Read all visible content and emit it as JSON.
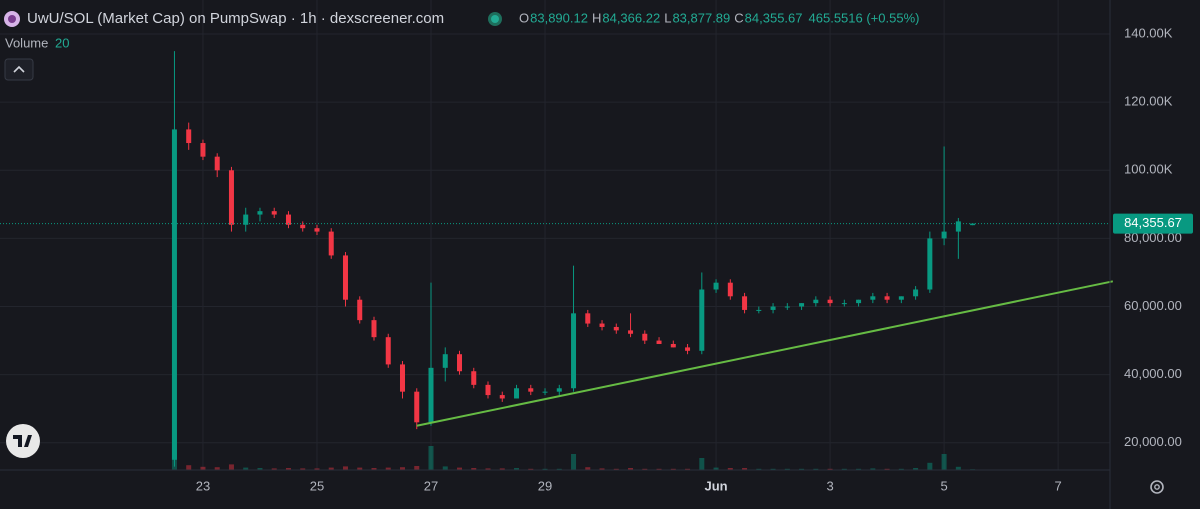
{
  "chart_data": {
    "type": "candlestick",
    "title": "UwU/SOL (Market Cap) on PumpSwap · 1h · dexscreener.com",
    "ohlc_legend": [
      {
        "key": "O",
        "value": "83,890.12"
      },
      {
        "key": "H",
        "value": "84,366.22"
      },
      {
        "key": "L",
        "value": "83,877.89"
      },
      {
        "key": "C",
        "value": "84,355.67"
      }
    ],
    "change": "465.5516 (+0.55%)",
    "volume_label": "Volume",
    "volume_length": 20,
    "up_color": "#089981",
    "down_color": "#f23645",
    "x": [
      22.5,
      22.75,
      23,
      23.25,
      23.5,
      23.75,
      24,
      24.25,
      24.5,
      24.75,
      25,
      25.25,
      25.5,
      25.75,
      26,
      26.25,
      26.5,
      26.75,
      27,
      27.25,
      27.5,
      27.75,
      28,
      28.25,
      28.5,
      28.75,
      29,
      29.25,
      29.5,
      29.75,
      30,
      30.25,
      30.5,
      30.75,
      31,
      31.25,
      31.5,
      31.75,
      32,
      32.25,
      32.5,
      32.75,
      33,
      33.25,
      33.5,
      33.75,
      34,
      34.25,
      34.5,
      34.75,
      35,
      35.25,
      35.5,
      35.75,
      36,
      36.25,
      36.5
    ],
    "open": [
      15000,
      112000,
      108000,
      104000,
      100000,
      84000,
      87000,
      88000,
      87000,
      84000,
      83000,
      82000,
      75000,
      62000,
      56000,
      51000,
      43000,
      35000,
      26000,
      42000,
      46000,
      41000,
      37000,
      34000,
      33000,
      36000,
      35000,
      35000,
      36000,
      58000,
      55000,
      54000,
      53000,
      52000,
      50000,
      49000,
      48000,
      47000,
      65000,
      67000,
      63000,
      59000,
      59000,
      60000,
      60000,
      61000,
      62000,
      61000,
      61000,
      62000,
      63000,
      62000,
      63000,
      65000,
      80000,
      82000,
      83890.12
    ],
    "high": [
      135000,
      114000,
      109000,
      105000,
      101000,
      89000,
      89000,
      89000,
      88000,
      85000,
      84000,
      83000,
      76000,
      63000,
      57000,
      52000,
      44000,
      36000,
      67000,
      48000,
      47000,
      42000,
      38000,
      35000,
      37000,
      37000,
      36000,
      37000,
      72000,
      59000,
      56000,
      55000,
      58000,
      53000,
      51000,
      50000,
      49000,
      70000,
      68000,
      68000,
      64000,
      60000,
      61000,
      61000,
      61000,
      63000,
      63000,
      62000,
      62000,
      64000,
      64000,
      63000,
      66000,
      82000,
      107000,
      86000,
      84366.22
    ],
    "low": [
      13000,
      106000,
      103000,
      98000,
      82000,
      82000,
      85000,
      86000,
      83000,
      82000,
      81000,
      74000,
      60000,
      55000,
      50000,
      42000,
      33000,
      24000,
      25000,
      38000,
      40000,
      36000,
      33000,
      32000,
      33000,
      34000,
      34000,
      34000,
      35000,
      54000,
      53000,
      52000,
      51000,
      49000,
      49000,
      48000,
      46000,
      46000,
      64000,
      62000,
      58000,
      58000,
      58000,
      59000,
      59000,
      60000,
      60000,
      60000,
      60000,
      61000,
      61000,
      61000,
      62000,
      64000,
      78000,
      74000,
      83877.89
    ],
    "close": [
      112000,
      108000,
      104000,
      100000,
      84000,
      87000,
      88000,
      87000,
      84000,
      83000,
      82000,
      75000,
      62000,
      56000,
      51000,
      43000,
      35000,
      26000,
      42000,
      46000,
      41000,
      37000,
      34000,
      33000,
      36000,
      35000,
      35000,
      36000,
      58000,
      55000,
      54000,
      53000,
      52000,
      50000,
      49000,
      48000,
      47000,
      65000,
      67000,
      63000,
      59000,
      59000,
      60000,
      60000,
      61000,
      62000,
      61000,
      61000,
      62000,
      63000,
      62000,
      63000,
      65000,
      80000,
      82000,
      85000,
      84355.67
    ],
    "volume": [
      100,
      12,
      8,
      7,
      14,
      6,
      5,
      4,
      5,
      4,
      4,
      6,
      9,
      6,
      5,
      6,
      7,
      10,
      60,
      9,
      6,
      5,
      4,
      4,
      5,
      3,
      3,
      3,
      40,
      7,
      4,
      3,
      5,
      3,
      3,
      3,
      3,
      30,
      6,
      5,
      5,
      3,
      3,
      3,
      3,
      3,
      3,
      3,
      3,
      4,
      3,
      3,
      5,
      18,
      40,
      8,
      2
    ],
    "trendline": {
      "x": [
        26.75,
        38.96
      ],
      "y": [
        25000,
        67400
      ],
      "color": "#66bb44"
    },
    "last_price": {
      "value": 84355.67,
      "label": "84,355.67"
    },
    "xlim": [
      19.44,
      38.91
    ],
    "ylim": [
      12000,
      150000
    ],
    "xticks": [
      23,
      25,
      27,
      29,
      {
        "value": 32,
        "label": "Jun"
      },
      {
        "value": 34,
        "label": "3"
      },
      {
        "value": 36,
        "label": "5"
      },
      {
        "value": 38,
        "label": "7"
      }
    ],
    "yticks": [
      {
        "value": 20000,
        "label": "20,000.00"
      },
      {
        "value": 40000,
        "label": "40,000.00"
      },
      {
        "value": 60000,
        "label": "60,000.00"
      },
      {
        "value": 80000,
        "label": "80,000.00"
      },
      {
        "value": 100000,
        "label": "100.00K"
      },
      {
        "value": 120000,
        "label": "120.00K"
      },
      {
        "value": 140000,
        "label": "140.00K"
      }
    ],
    "grid": true
  }
}
